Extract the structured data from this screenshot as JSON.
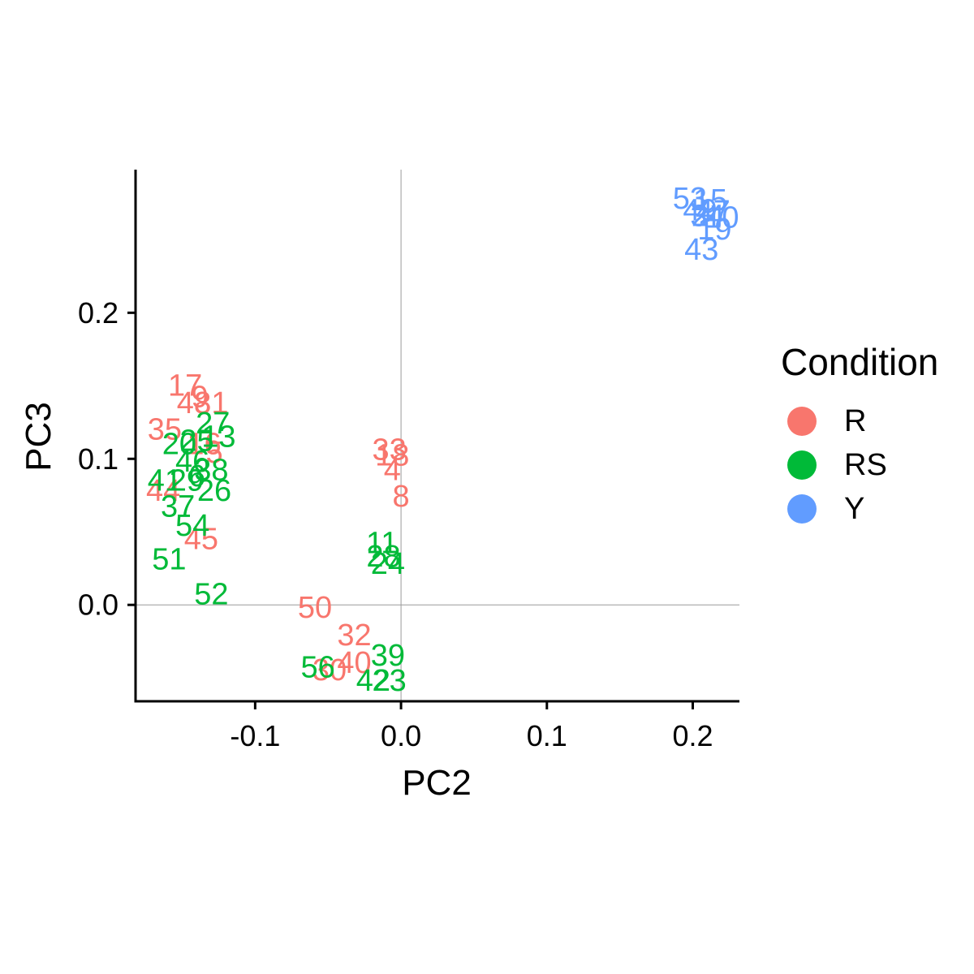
{
  "chart_data": {
    "type": "scatter",
    "title": "",
    "xlabel": "PC2",
    "ylabel": "PC3",
    "xlim": [
      -0.182,
      0.232
    ],
    "ylim": [
      -0.066,
      0.298
    ],
    "x_ticks": [
      -0.1,
      0.0,
      0.1,
      0.2
    ],
    "x_tick_labels": [
      "-0.1",
      "0.0",
      "0.1",
      "0.2"
    ],
    "y_ticks": [
      0.0,
      0.1,
      0.2
    ],
    "y_tick_labels": [
      "0.0",
      "0.1",
      "0.2"
    ],
    "reference_lines": {
      "x": 0.0,
      "y": 0.0
    },
    "grid": false,
    "legend": {
      "title": "Condition",
      "position": "right"
    },
    "series": [
      {
        "name": "R",
        "color": "#F8766D",
        "points": [
          {
            "label": "17",
            "x": -0.148,
            "y": 0.15
          },
          {
            "label": "48",
            "x": -0.142,
            "y": 0.138
          },
          {
            "label": "9",
            "x": -0.138,
            "y": 0.142
          },
          {
            "label": "31",
            "x": -0.13,
            "y": 0.138
          },
          {
            "label": "35",
            "x": -0.162,
            "y": 0.12
          },
          {
            "label": "16",
            "x": -0.135,
            "y": 0.11
          },
          {
            "label": "5",
            "x": -0.128,
            "y": 0.104
          },
          {
            "label": "33",
            "x": -0.008,
            "y": 0.106
          },
          {
            "label": "18",
            "x": -0.006,
            "y": 0.102
          },
          {
            "label": "4",
            "x": -0.006,
            "y": 0.092
          },
          {
            "label": "8",
            "x": 0.0,
            "y": 0.074
          },
          {
            "label": "44",
            "x": -0.163,
            "y": 0.078
          },
          {
            "label": "45",
            "x": -0.137,
            "y": 0.045
          },
          {
            "label": "50",
            "x": -0.059,
            "y": -0.002
          },
          {
            "label": "32",
            "x": -0.032,
            "y": -0.021
          },
          {
            "label": "30",
            "x": -0.049,
            "y": -0.045
          },
          {
            "label": "40",
            "x": -0.032,
            "y": -0.04
          }
        ]
      },
      {
        "name": "RS",
        "color": "#00BA38",
        "points": [
          {
            "label": "27",
            "x": -0.129,
            "y": 0.124
          },
          {
            "label": "13",
            "x": -0.125,
            "y": 0.115
          },
          {
            "label": "20",
            "x": -0.152,
            "y": 0.11
          },
          {
            "label": "25",
            "x": -0.14,
            "y": 0.112
          },
          {
            "label": "46",
            "x": -0.143,
            "y": 0.098
          },
          {
            "label": "38",
            "x": -0.13,
            "y": 0.092
          },
          {
            "label": "41",
            "x": -0.162,
            "y": 0.085
          },
          {
            "label": "29",
            "x": -0.147,
            "y": 0.085
          },
          {
            "label": "6",
            "x": -0.14,
            "y": 0.088
          },
          {
            "label": "26",
            "x": -0.128,
            "y": 0.078
          },
          {
            "label": "37",
            "x": -0.153,
            "y": 0.067
          },
          {
            "label": "54",
            "x": -0.143,
            "y": 0.054
          },
          {
            "label": "51",
            "x": -0.159,
            "y": 0.031
          },
          {
            "label": "52",
            "x": -0.13,
            "y": 0.007
          },
          {
            "label": "11",
            "x": -0.013,
            "y": 0.042
          },
          {
            "label": "28",
            "x": -0.012,
            "y": 0.033
          },
          {
            "label": "24",
            "x": -0.009,
            "y": 0.028
          },
          {
            "label": "39",
            "x": -0.009,
            "y": -0.035
          },
          {
            "label": "56",
            "x": -0.057,
            "y": -0.043
          },
          {
            "label": "42",
            "x": -0.019,
            "y": -0.052
          },
          {
            "label": "23",
            "x": -0.008,
            "y": -0.052
          }
        ]
      },
      {
        "name": "Y",
        "color": "#619CFF",
        "points": [
          {
            "label": "53",
            "x": 0.198,
            "y": 0.278
          },
          {
            "label": "15",
            "x": 0.212,
            "y": 0.277
          },
          {
            "label": "49",
            "x": 0.205,
            "y": 0.27
          },
          {
            "label": "47",
            "x": 0.214,
            "y": 0.269
          },
          {
            "label": "34",
            "x": 0.21,
            "y": 0.266
          },
          {
            "label": "2",
            "x": 0.205,
            "y": 0.266
          },
          {
            "label": "10",
            "x": 0.22,
            "y": 0.265
          },
          {
            "label": "19",
            "x": 0.215,
            "y": 0.257
          },
          {
            "label": "43",
            "x": 0.206,
            "y": 0.243
          }
        ]
      }
    ]
  }
}
